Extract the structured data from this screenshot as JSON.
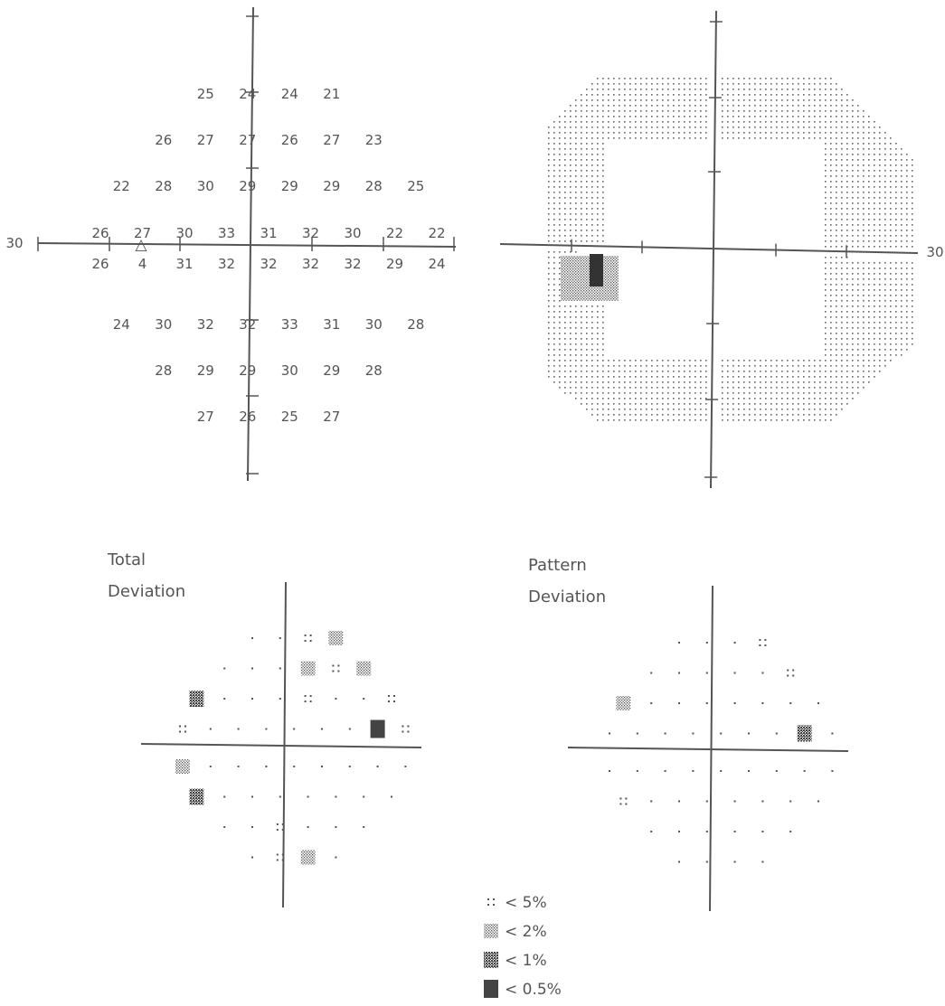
{
  "threshold_map": {
    "axis_label_left": "30",
    "blind_spot_symbol": "△",
    "rows": [
      [
        "25",
        "24",
        "24",
        "21"
      ],
      [
        "26",
        "27",
        "27",
        "26",
        "27",
        "23"
      ],
      [
        "22",
        "28",
        "30",
        "29",
        "29",
        "29",
        "28",
        "25"
      ],
      [
        "26",
        "27",
        "30",
        "33",
        "31",
        "32",
        "30",
        "22",
        "22"
      ],
      [
        "26",
        "4",
        "31",
        "32",
        "32",
        "32",
        "32",
        "29",
        "24"
      ],
      [
        "24",
        "30",
        "32",
        "32",
        "33",
        "31",
        "30",
        "28"
      ],
      [
        "28",
        "29",
        "29",
        "30",
        "29",
        "28"
      ],
      [
        "27",
        "26",
        "25",
        "27"
      ]
    ]
  },
  "grayscale_map": {
    "axis_label_right": "30"
  },
  "total_deviation": {
    "title_line1": "Total",
    "title_line2": "Deviation",
    "rows": [
      [
        ".",
        ".",
        "p5",
        "p2"
      ],
      [
        ".",
        ".",
        ".",
        "p2",
        "p5",
        "p2"
      ],
      [
        "p1",
        ".",
        ".",
        ".",
        "p5",
        ".",
        ".",
        "p5"
      ],
      [
        "p5",
        ".",
        ".",
        ".",
        ".",
        ".",
        ".",
        "p05",
        "p5"
      ],
      [
        "p2",
        ".",
        ".",
        ".",
        ".",
        ".",
        ".",
        ".",
        "."
      ],
      [
        "p1",
        ".",
        ".",
        ".",
        ".",
        ".",
        ".",
        "."
      ],
      [
        ".",
        ".",
        "p5",
        ".",
        ".",
        "."
      ],
      [
        ".",
        "p5",
        "p2",
        "."
      ]
    ]
  },
  "pattern_deviation": {
    "title_line1": "Pattern",
    "title_line2": "Deviation",
    "rows": [
      [
        ".",
        ".",
        ".",
        "p5"
      ],
      [
        ".",
        ".",
        ".",
        ".",
        ".",
        "p5"
      ],
      [
        "p2",
        ".",
        ".",
        ".",
        ".",
        ".",
        ".",
        "."
      ],
      [
        ".",
        ".",
        ".",
        ".",
        ".",
        ".",
        ".",
        "p1",
        "."
      ],
      [
        ".",
        ".",
        ".",
        ".",
        ".",
        ".",
        ".",
        ".",
        "."
      ],
      [
        "p5",
        ".",
        ".",
        ".",
        ".",
        ".",
        ".",
        "."
      ],
      [
        ".",
        ".",
        ".",
        ".",
        ".",
        "."
      ],
      [
        ".",
        ".",
        ".",
        "."
      ]
    ]
  },
  "legend": [
    {
      "symbol": "p5",
      "label": "< 5%"
    },
    {
      "symbol": "p2",
      "label": "< 2%"
    },
    {
      "symbol": "p1",
      "label": "< 1%"
    },
    {
      "symbol": "p05",
      "label": "< 0.5%"
    }
  ],
  "colors": {
    "ink": "#555555",
    "dark": "#444444"
  }
}
